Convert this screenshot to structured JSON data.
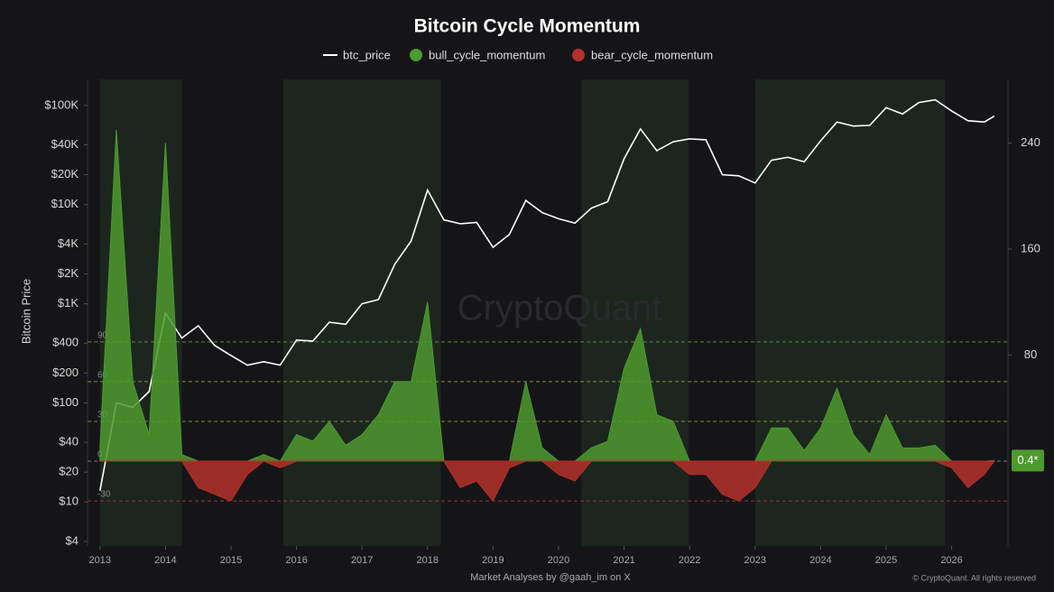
{
  "chart_data": {
    "type": "line",
    "title": "Bitcoin Cycle Momentum",
    "y_label": "Bitcoin Price",
    "watermark": "CryptoQuant",
    "footer": "Market Analyses by @gaah_im on X",
    "copyright": "© CryptoQuant. All rights reserved",
    "log_scale": true,
    "x": [
      2013.0,
      2013.25,
      2013.5,
      2013.75,
      2014.0,
      2014.25,
      2014.5,
      2014.75,
      2015.0,
      2015.25,
      2015.5,
      2015.75,
      2016.0,
      2016.25,
      2016.5,
      2016.75,
      2017.0,
      2017.25,
      2017.5,
      2017.75,
      2018.0,
      2018.25,
      2018.5,
      2018.75,
      2019.0,
      2019.25,
      2019.5,
      2019.75,
      2020.0,
      2020.25,
      2020.5,
      2020.75,
      2021.0,
      2021.25,
      2021.5,
      2021.75,
      2022.0,
      2022.25,
      2022.5,
      2022.75,
      2023.0,
      2023.25,
      2023.5,
      2023.75,
      2024.0,
      2024.25,
      2024.5,
      2024.75,
      2025.0,
      2025.25,
      2025.5,
      2025.75,
      2026.0,
      2026.25,
      2026.5,
      2026.65
    ],
    "series": [
      {
        "name": "btc_price",
        "color": "#ffffff",
        "axis": "y",
        "values": [
          13,
          100,
          90,
          130,
          800,
          450,
          600,
          380,
          300,
          240,
          260,
          240,
          430,
          420,
          650,
          620,
          1000,
          1100,
          2500,
          4300,
          14000,
          7000,
          6400,
          6600,
          3700,
          5000,
          11000,
          8300,
          7200,
          6500,
          9200,
          10700,
          29000,
          58000,
          35000,
          43000,
          46000,
          45000,
          20000,
          19500,
          16500,
          28000,
          30000,
          27000,
          44000,
          68000,
          62000,
          63000,
          95000,
          82000,
          107000,
          114000,
          88000,
          70000,
          68000,
          78000
        ]
      },
      {
        "name": "bull_cycle_momentum",
        "color": "#4e9a2e",
        "axis": "y2",
        "values": [
          10,
          250,
          60,
          20,
          240,
          5,
          0,
          0,
          0,
          0,
          5,
          0,
          20,
          15,
          30,
          12,
          20,
          35,
          60,
          60,
          120,
          0,
          0,
          0,
          0,
          0,
          60,
          10,
          0,
          0,
          10,
          15,
          70,
          100,
          35,
          30,
          0,
          0,
          0,
          0,
          0,
          25,
          25,
          8,
          25,
          55,
          20,
          5,
          35,
          10,
          10,
          12,
          0,
          0,
          0,
          0.4
        ]
      },
      {
        "name": "bear_cycle_momentum",
        "color": "#b3302b",
        "axis": "y2",
        "values": [
          0,
          0,
          0,
          0,
          0,
          0,
          -20,
          -25,
          -30,
          -10,
          0,
          -5,
          0,
          0,
          0,
          0,
          0,
          0,
          0,
          0,
          0,
          0,
          -20,
          -15,
          -30,
          -5,
          0,
          0,
          -10,
          -15,
          0,
          0,
          0,
          0,
          0,
          0,
          -10,
          -10,
          -25,
          -30,
          -20,
          0,
          0,
          0,
          0,
          0,
          0,
          0,
          0,
          0,
          0,
          0,
          -5,
          -20,
          -10,
          0
        ]
      }
    ],
    "xlim": [
      2012.81,
      2026.86
    ],
    "xticks": [
      2013,
      2014,
      2015,
      2016,
      2017,
      2018,
      2019,
      2020,
      2021,
      2022,
      2023,
      2024,
      2025,
      2026
    ],
    "ylim": [
      3.6,
      183000
    ],
    "yticks": [
      {
        "value": 4,
        "label": "$4"
      },
      {
        "value": 10,
        "label": "$10"
      },
      {
        "value": 20,
        "label": "$20"
      },
      {
        "value": 40,
        "label": "$40"
      },
      {
        "value": 100,
        "label": "$100"
      },
      {
        "value": 200,
        "label": "$200"
      },
      {
        "value": 400,
        "label": "$400"
      },
      {
        "value": 1000,
        "label": "$1K"
      },
      {
        "value": 2000,
        "label": "$2K"
      },
      {
        "value": 4000,
        "label": "$4K"
      },
      {
        "value": 10000,
        "label": "$10K"
      },
      {
        "value": 20000,
        "label": "$20K"
      },
      {
        "value": 40000,
        "label": "$40K"
      },
      {
        "value": 100000,
        "label": "$100K"
      }
    ],
    "y2lim": [
      -64,
      288
    ],
    "y2ticks": [
      80,
      160,
      240
    ],
    "thresholds": [
      {
        "value": 90,
        "color": "#5e8a3a"
      },
      {
        "value": 60,
        "color": "#8a8a3a"
      },
      {
        "value": 30,
        "color": "#7a8a3a"
      },
      {
        "value": 0,
        "color": "#777777"
      },
      {
        "value": -30,
        "color": "#8a3a3a"
      }
    ],
    "bull_regions": [
      [
        2013.0,
        2014.25
      ],
      [
        2015.8,
        2018.2
      ],
      [
        2020.35,
        2021.98
      ],
      [
        2023.0,
        2025.9
      ]
    ],
    "current": {
      "value": 0.4,
      "label": "0.4*"
    }
  }
}
